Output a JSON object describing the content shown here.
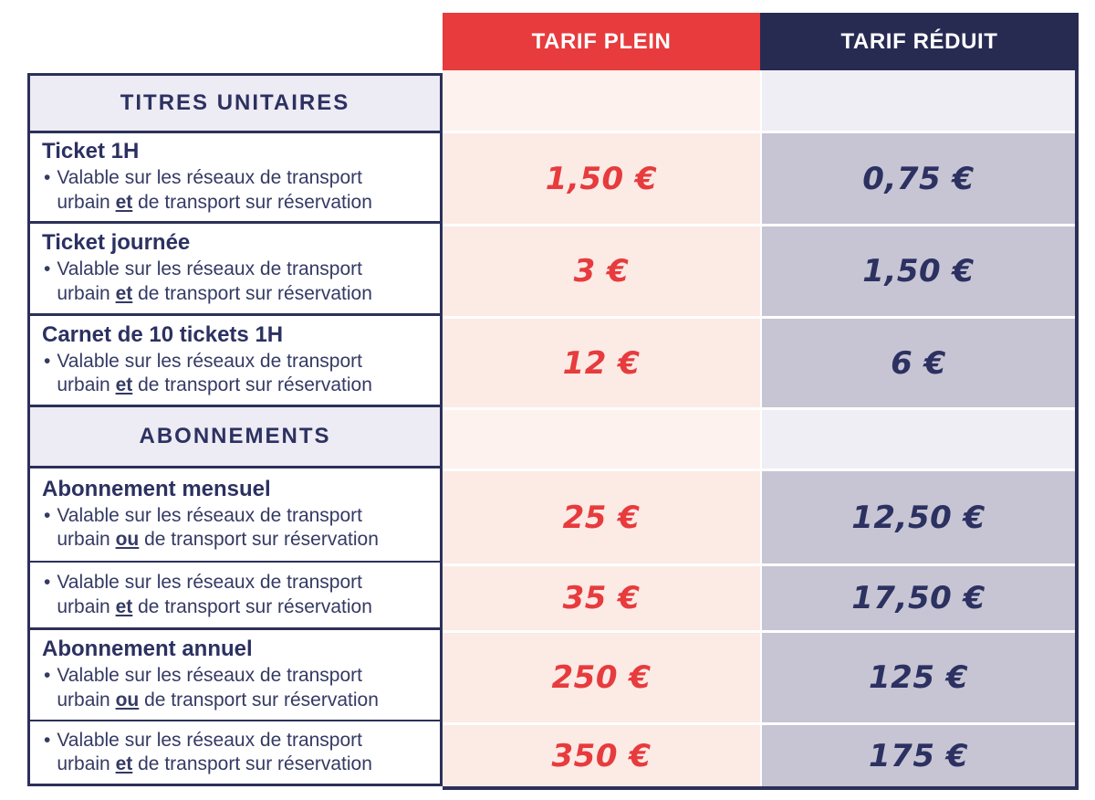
{
  "header": {
    "plein_label": "TARIF PLEIN",
    "reduit_label": "TARIF RÉDUIT"
  },
  "colors": {
    "accent_red": "#e73b3d",
    "accent_navy": "#272b52",
    "text_navy": "#2c3161",
    "border_navy": "#2c3059",
    "plein_cell_bg": "#fceae5",
    "plein_section_bg": "#fdf2ee",
    "reduit_cell_bg": "#c7c5d4",
    "reduit_section_bg": "#efeef5",
    "section_label_bg": "#edebf3"
  },
  "bullet": {
    "line1": "Valable sur les réseaux de transport",
    "prefix": "urbain",
    "suffix": "de transport sur réservation"
  },
  "rows": [
    {
      "type": "section",
      "label": "TITRES UNITAIRES"
    },
    {
      "type": "item",
      "title": "Ticket 1H",
      "keyword": "et",
      "plein": "1,50 €",
      "reduit": "0,75 €"
    },
    {
      "type": "item",
      "title": "Ticket journée",
      "keyword": "et",
      "plein": "3 €",
      "reduit": "1,50 €"
    },
    {
      "type": "item",
      "title": "Carnet de 10 tickets 1H",
      "keyword": "et",
      "plein": "12 €",
      "reduit": "6 €"
    },
    {
      "type": "section",
      "label": "ABONNEMENTS"
    },
    {
      "type": "item",
      "title": "Abonnement mensuel",
      "keyword": "ou",
      "plein": "25 €",
      "reduit": "12,50 €"
    },
    {
      "type": "item",
      "title": "",
      "keyword": "et",
      "plein": "35 €",
      "reduit": "17,50 €"
    },
    {
      "type": "item",
      "title": "Abonnement annuel",
      "keyword": "ou",
      "plein": "250 €",
      "reduit": "125 €"
    },
    {
      "type": "item",
      "title": "",
      "keyword": "et",
      "plein": "350 €",
      "reduit": "175 €"
    }
  ]
}
